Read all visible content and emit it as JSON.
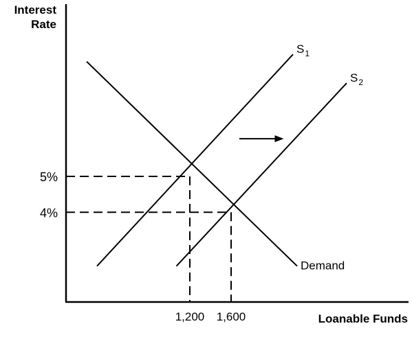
{
  "chart_data": {
    "type": "line",
    "title": "",
    "ylabel_lines": [
      "Interest",
      "Rate"
    ],
    "xlabel": "Loanable Funds",
    "y_ticks": [
      {
        "label": "5%",
        "value": 5
      },
      {
        "label": "4%",
        "value": 4
      }
    ],
    "x_ticks": [
      {
        "label": "1,200",
        "value": 1200
      },
      {
        "label": "1,600",
        "value": 1600
      }
    ],
    "series": [
      {
        "name": "S",
        "name_subscript": "1",
        "kind": "supply",
        "points": [
          [
            300,
            2.5
          ],
          [
            2200,
            8.4
          ]
        ]
      },
      {
        "name": "S",
        "name_subscript": "2",
        "kind": "supply",
        "points": [
          [
            1070,
            2.5
          ],
          [
            2720,
            7.6
          ]
        ]
      },
      {
        "name": "Demand",
        "name_subscript": "",
        "kind": "demand",
        "points": [
          [
            200,
            8.2
          ],
          [
            2240,
            2.5
          ]
        ]
      }
    ],
    "equilibria": [
      {
        "x": 1200,
        "y": 5
      },
      {
        "x": 1600,
        "y": 4
      }
    ],
    "shift_arrow": {
      "from": [
        1680,
        6.05
      ],
      "to": [
        2110,
        6.05
      ]
    },
    "xlim": [
      0,
      3320
    ],
    "ylim": [
      1.5,
      9.8
    ],
    "grid": false,
    "legend": "none"
  }
}
